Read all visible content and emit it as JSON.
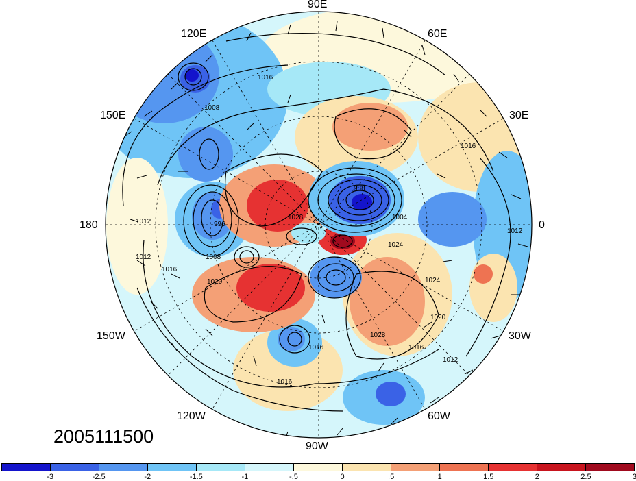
{
  "map": {
    "date": "2005111500",
    "longitude_labels": [
      "90E",
      "60E",
      "30E",
      "0",
      "30W",
      "60W",
      "90W",
      "120W",
      "150W",
      "180",
      "150E",
      "120E"
    ],
    "isobar_labels": [
      "1016",
      "1008",
      "1016",
      "988",
      "1004",
      "1028",
      "1024",
      "1024",
      "1020",
      "1028",
      "1016",
      "1012",
      "1012",
      "1012",
      "1016",
      "1020",
      "1016",
      "1008",
      "996",
      "1012",
      "1016"
    ],
    "projection": "north-polar-stereographic",
    "field_colors": {
      "blue": "#3a62e6",
      "light_blue": "#a6e8f7",
      "cream": "#fbf0c6",
      "orange": "#f4a076",
      "red": "#e63232",
      "dark_red": "#a00a1e"
    }
  },
  "colorbar": {
    "colors": [
      "#1414cc",
      "#3a62e6",
      "#5596f0",
      "#6fc4f6",
      "#a6e8f7",
      "#d5f6fb",
      "#fdf8dc",
      "#fbe4b0",
      "#f4a076",
      "#ee7352",
      "#e63232",
      "#c8141e",
      "#a00a1e"
    ],
    "ticks": [
      "-3",
      "-2.5",
      "-2",
      "-1.5",
      "-1",
      "-.5",
      "0",
      ".5",
      "1",
      "1.5",
      "2",
      "2.5",
      "3"
    ]
  }
}
